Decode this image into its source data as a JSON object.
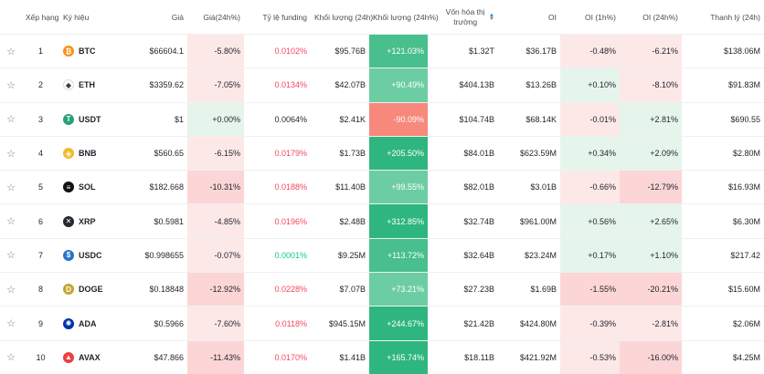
{
  "headers": {
    "rank": "Xếp hạng",
    "symbol": "Ký hiệu",
    "price": "Giá",
    "change24h": "Giá(24h%)",
    "funding": "Tỷ lệ funding",
    "volume": "Khối lượng (24h)",
    "volume_pct": "Khối lượng (24h%)",
    "mcap_line1": "Vốn hóa thị",
    "mcap_line2": "trường",
    "oi": "OI",
    "oi1h": "OI (1h%)",
    "oi24h": "OI (24h%)",
    "liq": "Thanh lý (24h)"
  },
  "rows": [
    {
      "rank": "1",
      "symbol": "BTC",
      "icon": "bitcoin-icon",
      "icon_color": "#f7931a",
      "glyph": "₿",
      "price": "$66604.1",
      "change": "-5.80%",
      "funding": "0.0102%",
      "volume": "$95.76B",
      "volume_pct": "+121.03%",
      "mcap": "$1.32T",
      "oi": "$36.17B",
      "oi1h": "-0.48%",
      "oi24h": "-6.21%",
      "liq": "$138.06M"
    },
    {
      "rank": "2",
      "symbol": "ETH",
      "icon": "ethereum-icon",
      "icon_color": "#ffffff",
      "glyph": "◆",
      "price": "$3359.62",
      "change": "-7.05%",
      "funding": "0.0134%",
      "volume": "$42.07B",
      "volume_pct": "+90.49%",
      "mcap": "$404.13B",
      "oi": "$13.26B",
      "oi1h": "+0.10%",
      "oi24h": "-8.10%",
      "liq": "$91.83M"
    },
    {
      "rank": "3",
      "symbol": "USDT",
      "icon": "tether-icon",
      "icon_color": "#26a17b",
      "glyph": "T",
      "price": "$1",
      "change": "+0.00%",
      "funding": "0.0064%",
      "volume": "$2.41K",
      "volume_pct": "-90.09%",
      "mcap": "$104.74B",
      "oi": "$68.14K",
      "oi1h": "-0.01%",
      "oi24h": "+2.81%",
      "liq": "$690.55"
    },
    {
      "rank": "4",
      "symbol": "BNB",
      "icon": "bnb-icon",
      "icon_color": "#f3ba2f",
      "glyph": "◈",
      "price": "$560.65",
      "change": "-6.15%",
      "funding": "0.0179%",
      "volume": "$1.73B",
      "volume_pct": "+205.50%",
      "mcap": "$84.01B",
      "oi": "$623.59M",
      "oi1h": "+0.34%",
      "oi24h": "+2.09%",
      "liq": "$2.80M"
    },
    {
      "rank": "5",
      "symbol": "SOL",
      "icon": "solana-icon",
      "icon_color": "#111111",
      "glyph": "≡",
      "price": "$182.668",
      "change": "-10.31%",
      "funding": "0.0188%",
      "volume": "$11.40B",
      "volume_pct": "+99.55%",
      "mcap": "$82.01B",
      "oi": "$3.01B",
      "oi1h": "-0.66%",
      "oi24h": "-12.79%",
      "liq": "$16.93M"
    },
    {
      "rank": "6",
      "symbol": "XRP",
      "icon": "xrp-icon",
      "icon_color": "#23292f",
      "glyph": "✕",
      "price": "$0.5981",
      "change": "-4.85%",
      "funding": "0.0196%",
      "volume": "$2.48B",
      "volume_pct": "+312.85%",
      "mcap": "$32.74B",
      "oi": "$961.00M",
      "oi1h": "+0.56%",
      "oi24h": "+2.65%",
      "liq": "$6.30M"
    },
    {
      "rank": "7",
      "symbol": "USDC",
      "icon": "usdc-icon",
      "icon_color": "#2775ca",
      "glyph": "$",
      "price": "$0.998655",
      "change": "-0.07%",
      "funding": "0.0001%",
      "volume": "$9.25M",
      "volume_pct": "+113.72%",
      "mcap": "$32.64B",
      "oi": "$23.24M",
      "oi1h": "+0.17%",
      "oi24h": "+1.10%",
      "liq": "$217.42"
    },
    {
      "rank": "8",
      "symbol": "DOGE",
      "icon": "dogecoin-icon",
      "icon_color": "#c2a633",
      "glyph": "D",
      "price": "$0.18848",
      "change": "-12.92%",
      "funding": "0.0228%",
      "volume": "$7.07B",
      "volume_pct": "+73.21%",
      "mcap": "$27.23B",
      "oi": "$1.69B",
      "oi1h": "-1.55%",
      "oi24h": "-20.21%",
      "liq": "$15.60M"
    },
    {
      "rank": "9",
      "symbol": "ADA",
      "icon": "cardano-icon",
      "icon_color": "#0033ad",
      "glyph": "✺",
      "price": "$0.5966",
      "change": "-7.60%",
      "funding": "0.0118%",
      "volume": "$945.15M",
      "volume_pct": "+244.67%",
      "mcap": "$21.42B",
      "oi": "$424.80M",
      "oi1h": "-0.39%",
      "oi24h": "-2.81%",
      "liq": "$2.06M"
    },
    {
      "rank": "10",
      "symbol": "AVAX",
      "icon": "avalanche-icon",
      "icon_color": "#e84142",
      "glyph": "▲",
      "price": "$47.866",
      "change": "-11.43%",
      "funding": "0.0170%",
      "volume": "$1.41B",
      "volume_pct": "+165.74%",
      "mcap": "$18.11B",
      "oi": "$421.92M",
      "oi1h": "-0.53%",
      "oi24h": "-16.00%",
      "liq": "$4.25M"
    }
  ]
}
